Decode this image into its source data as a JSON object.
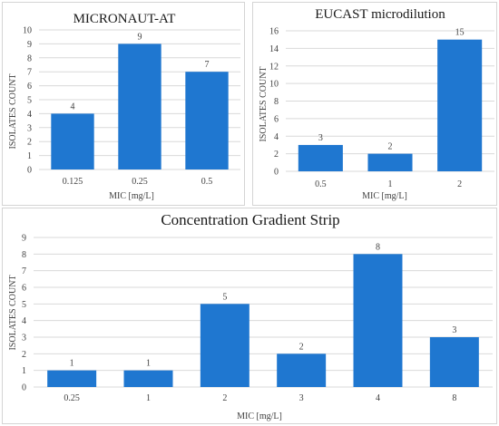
{
  "colors": {
    "bar": "#1f77d0",
    "grid": "#d9d9d9",
    "text": "#404040"
  },
  "chart_data": [
    {
      "id": "a",
      "type": "bar",
      "title": "MICRONAUT-AT",
      "xlabel": "MIC [mg/L]",
      "ylabel": "ISOLATES COUNT",
      "categories": [
        "0.125",
        "0.25",
        "0.5"
      ],
      "values": [
        4,
        9,
        7
      ],
      "data_labels": [
        "4",
        "9",
        "7"
      ],
      "ylim": [
        0,
        10
      ],
      "yticks": [
        "0",
        "1",
        "2",
        "3",
        "4",
        "5",
        "6",
        "7",
        "8",
        "9",
        "10"
      ],
      "grid": true
    },
    {
      "id": "b",
      "type": "bar",
      "title": "EUCAST microdilution",
      "xlabel": "MIC [mg/L]",
      "ylabel": "ISOLATES COUNT",
      "categories": [
        "0.5",
        "1",
        "2"
      ],
      "values": [
        3,
        2,
        15
      ],
      "data_labels": [
        "3",
        "2",
        "15"
      ],
      "ylim": [
        0,
        16
      ],
      "yticks": [
        "0",
        "2",
        "4",
        "6",
        "8",
        "10",
        "12",
        "14",
        "16"
      ],
      "grid": true
    },
    {
      "id": "c",
      "type": "bar",
      "title": "Concentration Gradient Strip",
      "xlabel": "MIC [mg/L]",
      "ylabel": "ISOLATES COUNT",
      "categories": [
        "0.25",
        "1",
        "2",
        "3",
        "4",
        "8"
      ],
      "values": [
        1,
        1,
        5,
        2,
        8,
        3
      ],
      "data_labels": [
        "1",
        "1",
        "5",
        "2",
        "8",
        "3"
      ],
      "ylim": [
        0,
        9
      ],
      "yticks": [
        "0",
        "1",
        "2",
        "3",
        "4",
        "5",
        "6",
        "7",
        "8",
        "9"
      ],
      "grid": true
    }
  ]
}
